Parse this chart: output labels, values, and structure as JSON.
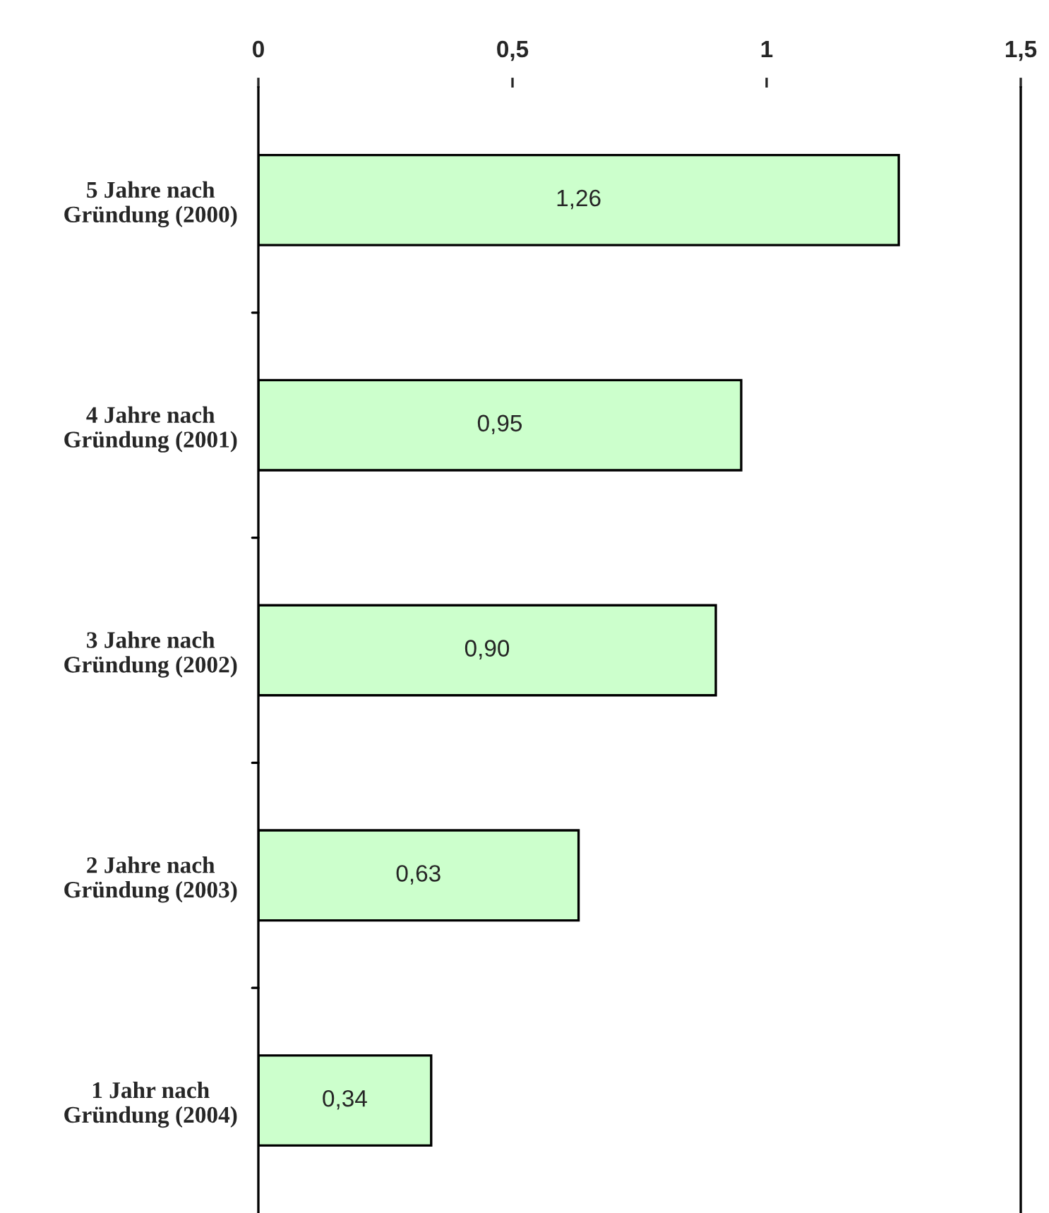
{
  "chart_data": {
    "type": "bar",
    "orientation": "horizontal",
    "categories": [
      "5 Jahre nach\nGründung (2000)",
      "4 Jahre nach\nGründung (2001)",
      "3 Jahre nach\nGründung (2002)",
      "2 Jahre nach\nGründung (2003)",
      "1 Jahr nach\nGründung (2004)"
    ],
    "values": [
      1.26,
      0.95,
      0.9,
      0.63,
      0.34
    ],
    "value_labels": [
      "1,26",
      "0,95",
      "0,90",
      "0,63",
      "0,34"
    ],
    "color": "#ccffcc",
    "xlim": [
      0,
      1.5
    ],
    "xticks": [
      0,
      {
        "value": 0.5,
        "label": "0,5"
      },
      1,
      {
        "value": 1.5,
        "label": "1,5"
      }
    ],
    "grid": false,
    "legend": false
  }
}
